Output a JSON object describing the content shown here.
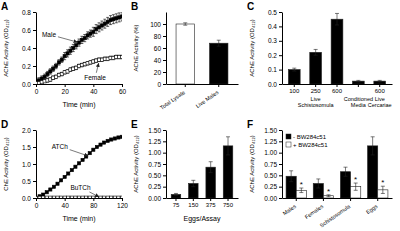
{
  "chart_data": [
    {
      "type": "line",
      "title": "A",
      "xlabel": "Time (min)",
      "ylabel": "AChE Activity (OD₄₁₂)",
      "x": [
        0,
        2,
        4,
        6,
        8,
        10,
        12,
        14,
        16,
        18,
        20,
        22,
        24,
        26,
        28,
        30,
        32,
        34,
        36,
        38,
        40,
        42,
        44,
        46,
        48,
        50,
        52,
        54,
        56,
        58,
        60
      ],
      "series": [
        {
          "color": "black",
          "marker": "square",
          "line_style": "solid",
          "values": [
            0.02,
            0.04,
            0.06,
            0.08,
            0.11,
            0.14,
            0.17,
            0.2,
            0.24,
            0.27,
            0.31,
            0.34,
            0.37,
            0.4,
            0.43,
            0.46,
            0.49,
            0.51,
            0.54,
            0.56,
            0.58,
            0.61,
            0.63,
            0.65,
            0.67,
            0.69,
            0.71,
            0.72,
            0.73,
            0.74,
            0.75
          ],
          "errors": [
            0.03,
            0.03,
            0.03,
            0.03,
            0.03,
            0.03,
            0.03,
            0.03,
            0.03,
            0.03,
            0.04,
            0.04,
            0.04,
            0.04,
            0.04,
            0.04,
            0.04,
            0.04,
            0.04,
            0.04,
            0.05,
            0.05,
            0.05,
            0.05,
            0.05,
            0.05,
            0.05,
            0.05,
            0.05,
            0.05,
            0.05
          ]
        },
        {
          "color": "black",
          "marker": "open-square",
          "line_style": "dashed",
          "values": [
            0.01,
            0.01,
            0.02,
            0.03,
            0.04,
            0.05,
            0.07,
            0.08,
            0.1,
            0.11,
            0.13,
            0.14,
            0.16,
            0.17,
            0.18,
            0.2,
            0.21,
            0.22,
            0.23,
            0.24,
            0.25,
            0.26,
            0.27,
            0.27,
            0.28,
            0.28,
            0.29,
            0.29,
            0.3,
            0.3,
            0.3
          ],
          "errors": [
            0.01,
            0.01,
            0.01,
            0.01,
            0.02,
            0.02,
            0.02,
            0.02,
            0.02,
            0.02,
            0.02,
            0.02,
            0.02,
            0.02,
            0.02,
            0.02,
            0.02,
            0.02,
            0.02,
            0.02,
            0.02,
            0.02,
            0.02,
            0.02,
            0.02,
            0.02,
            0.02,
            0.02,
            0.02,
            0.02,
            0.02
          ]
        }
      ],
      "xlim": [
        0,
        60
      ],
      "xticks": [
        0,
        20,
        40,
        60
      ],
      "ylim": [
        0.0,
        0.8
      ],
      "yticks": [
        {
          "value": 0.0,
          "label": "0.0"
        },
        0.2,
        0.4,
        0.6,
        0.8
      ],
      "annotations": [
        {
          "text": "Male",
          "x": 30,
          "y": 0.46
        },
        {
          "text": "Female",
          "x": 44,
          "y": 0.25
        }
      ]
    },
    {
      "type": "bar",
      "title": "B",
      "ylabel": "AChE Activity (%)",
      "categories": [
        "Total Lysate",
        "Live Males"
      ],
      "values": [
        100,
        68
      ],
      "errors": [
        2,
        5
      ],
      "colors": [
        "white",
        "black"
      ],
      "ylim": [
        0,
        120
      ],
      "yticks": [
        0,
        20,
        40,
        60,
        80,
        100
      ]
    },
    {
      "type": "bar",
      "title": "C",
      "ylabel": "AChE Activity (OD₄₁₂)",
      "categories": [
        "100",
        "250",
        "600",
        null,
        "600"
      ],
      "values": [
        0.1,
        0.22,
        0.45,
        0.02,
        0.02
      ],
      "errors": [
        0.01,
        0.02,
        0.04,
        0.005,
        0.005
      ],
      "colors": [
        "black",
        "black",
        "black",
        "black",
        "black"
      ],
      "ylim": [
        0.0,
        0.5
      ],
      "yticks": [
        {
          "value": 0.0,
          "label": "0.0"
        },
        0.1,
        0.2,
        0.3,
        0.4,
        0.5
      ],
      "annotations": [
        {
          "text": "Live\nSchistosomula",
          "x": 1
        },
        {
          "text": "Conditioned\nMedia",
          "x": 3
        },
        {
          "text": "Live\nCercariae",
          "x": 4
        }
      ]
    },
    {
      "type": "line",
      "title": "D",
      "xlabel": "Time (min)",
      "ylabel": "ChE Activity (OD₄₁₂)",
      "x": [
        0,
        5,
        10,
        15,
        20,
        25,
        30,
        35,
        40,
        45,
        50,
        55,
        60,
        65,
        70,
        75,
        80,
        85,
        90,
        95,
        100,
        105,
        110,
        115,
        120
      ],
      "series": [
        {
          "color": "black",
          "marker": "square",
          "line_style": "solid",
          "values": [
            0.0,
            0.05,
            0.1,
            0.17,
            0.25,
            0.33,
            0.42,
            0.52,
            0.62,
            0.72,
            0.82,
            0.92,
            1.02,
            1.12,
            1.22,
            1.32,
            1.42,
            1.5,
            1.57,
            1.63,
            1.68,
            1.72,
            1.75,
            1.78,
            1.8
          ]
        },
        {
          "color": "black",
          "marker": "open-square",
          "line_style": "solid",
          "values": [
            0.0,
            0.005,
            0.01,
            0.01,
            0.01,
            0.01,
            0.01,
            0.01,
            0.01,
            0.01,
            0.01,
            0.01,
            0.01,
            0.01,
            0.01,
            0.01,
            0.01,
            0.01,
            0.01,
            0.01,
            0.01,
            0.01,
            0.01,
            0.01,
            0.01
          ]
        }
      ],
      "xlim": [
        0,
        120
      ],
      "xticks": [
        0,
        40,
        80,
        120
      ],
      "ylim": [
        0.0,
        2.0
      ],
      "yticks": [
        {
          "value": 0.0,
          "label": "0.0"
        },
        0.5,
        {
          "value": 1.0,
          "label": "1.0"
        },
        1.5,
        {
          "value": 2.0,
          "label": "2.0"
        }
      ],
      "annotations": [
        {
          "text": "ATCh",
          "x": 75,
          "y": 1.22
        },
        {
          "text": "BuTCh",
          "x": 90,
          "y": 0.01
        }
      ]
    },
    {
      "type": "bar",
      "title": "E",
      "xlabel": "Eggs/Assay",
      "ylabel": "AChE Activity (OD₄₁₂)",
      "categories": [
        "75",
        "150",
        "375",
        "750"
      ],
      "values": [
        0.08,
        0.32,
        0.68,
        1.15
      ],
      "errors": [
        0.02,
        0.07,
        0.12,
        0.2
      ],
      "color": "black",
      "ylim": [
        0.0,
        1.5
      ],
      "yticks": [
        {
          "value": 0.0,
          "label": "0.00"
        },
        0.25,
        {
          "value": 0.5,
          "label": "0.50"
        },
        0.75,
        {
          "value": 1.0,
          "label": "1.00"
        },
        1.25,
        {
          "value": 1.5,
          "label": "1.50"
        }
      ]
    },
    {
      "type": "bar",
      "title": "F",
      "ylabel": "AChE Activity (OD₄₁₂)",
      "categories": [
        "Males",
        "Females",
        "Schistosomula",
        "Eggs"
      ],
      "series": [
        {
          "name": "- BW284c51",
          "color": "black",
          "values": [
            0.48,
            0.32,
            0.58,
            1.15
          ],
          "errors": [
            0.12,
            0.1,
            0.1,
            0.2
          ]
        },
        {
          "name": "+ BW284c51",
          "color": "white",
          "values": [
            0.17,
            0.05,
            0.25,
            0.18
          ],
          "errors": [
            0.05,
            0.02,
            0.08,
            0.08
          ]
        }
      ],
      "legend": "top-left",
      "ylim": [
        0.0,
        1.5
      ],
      "yticks": [
        {
          "value": 0.0,
          "label": "0.00"
        },
        0.25,
        {
          "value": 0.5,
          "label": "0.50"
        },
        0.75,
        {
          "value": 1.0,
          "label": "1.00"
        },
        1.25,
        {
          "value": 1.5,
          "label": "1.50"
        }
      ],
      "annotations": [
        {
          "text": "*",
          "category": "Males",
          "series": "+ BW284c51"
        },
        {
          "text": "*",
          "category": "Females",
          "series": "+ BW284c51"
        },
        {
          "text": "*",
          "category": "Schistosomula",
          "series": "+ BW284c51"
        },
        {
          "text": "*",
          "category": "Eggs",
          "series": "+ BW284c51"
        }
      ]
    }
  ]
}
